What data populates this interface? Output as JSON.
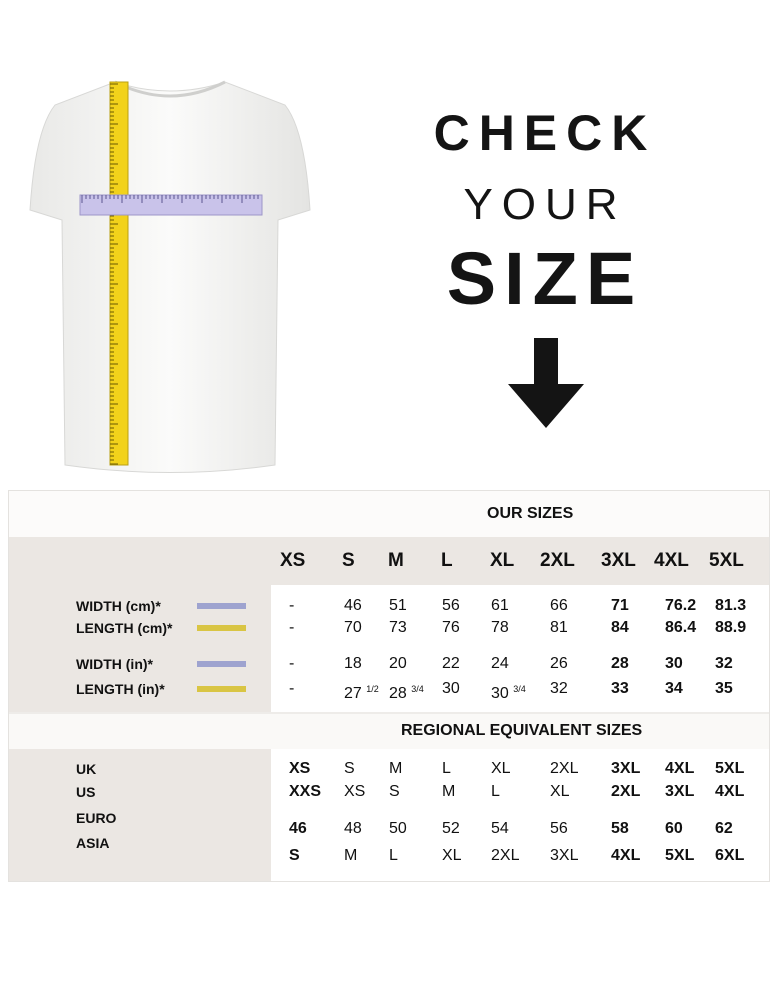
{
  "heading": {
    "line1": "CHECK",
    "line2": "YOUR",
    "line3": "SIZE"
  },
  "colors": {
    "width_bar": "#9ea3cf",
    "length_bar": "#d9c544",
    "panel_gray": "#ebe7e3"
  },
  "our_sizes": {
    "title": "OUR SIZES",
    "sizes": [
      "XS",
      "S",
      "M",
      "L",
      "XL",
      "2XL",
      "3XL",
      "4XL",
      "5XL"
    ],
    "rows": [
      {
        "label": "WIDTH (cm)*",
        "bar": "width",
        "values": [
          "-",
          "46",
          "51",
          "56",
          "61",
          "66",
          "71",
          "76.2",
          "81.3"
        ]
      },
      {
        "label": "LENGTH (cm)*",
        "bar": "length",
        "values": [
          "-",
          "70",
          "73",
          "76",
          "78",
          "81",
          "84",
          "86.4",
          "88.9"
        ]
      },
      {
        "label": "WIDTH (in)*",
        "bar": "width",
        "values": [
          "-",
          "18",
          "20",
          "22",
          "24",
          "26",
          "28",
          "30",
          "32"
        ]
      },
      {
        "label": "LENGTH (in)*",
        "bar": "length",
        "values": [
          "-",
          "27",
          "28",
          "30",
          "30",
          "32",
          "33",
          "34",
          "35"
        ],
        "fractions": [
          "",
          "1/2",
          "3/4",
          "",
          "3/4",
          "",
          "",
          "",
          ""
        ]
      }
    ]
  },
  "regional": {
    "title": "REGIONAL EQUIVALENT SIZES",
    "labels": [
      "UK",
      "US",
      "EURO",
      "ASIA"
    ],
    "rows": [
      [
        "XS",
        "S",
        "M",
        "L",
        "XL",
        "2XL",
        "3XL",
        "4XL",
        "5XL"
      ],
      [
        "XXS",
        "XS",
        "S",
        "M",
        "L",
        "XL",
        "2XL",
        "3XL",
        "4XL"
      ],
      [
        "46",
        "48",
        "50",
        "52",
        "54",
        "56",
        "58",
        "60",
        "62"
      ],
      [
        "S",
        "M",
        "L",
        "XL",
        "2XL",
        "3XL",
        "4XL",
        "5XL",
        "6XL"
      ]
    ]
  }
}
